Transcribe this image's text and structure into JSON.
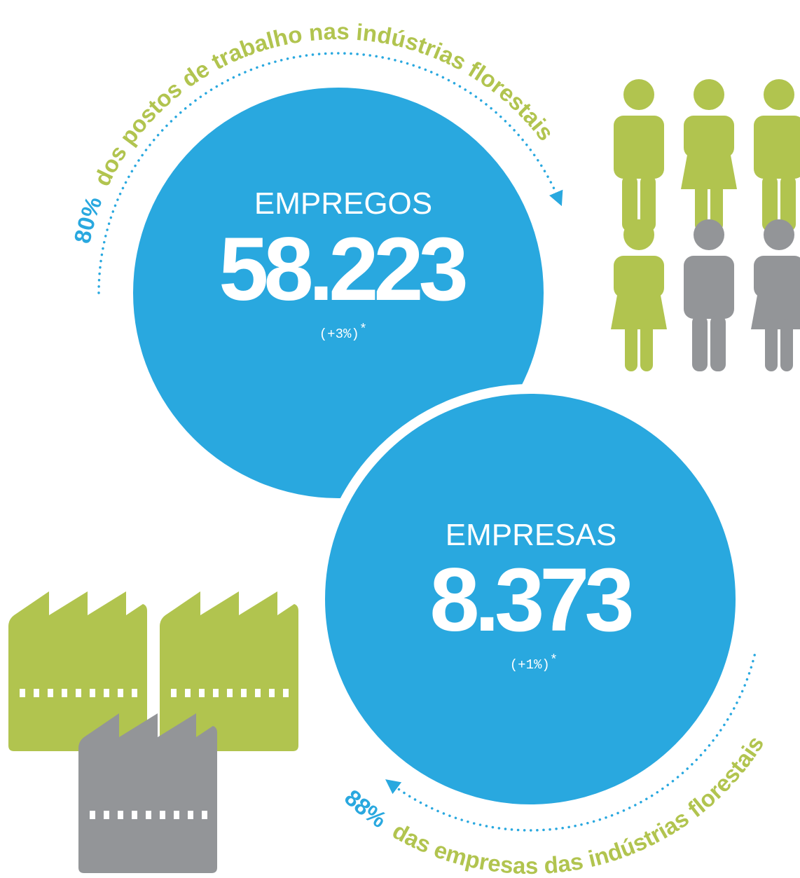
{
  "jobs": {
    "label": "EMPREGOS",
    "value": "58.223",
    "change": "(+3%)",
    "note": "*",
    "share": "80%",
    "share_text": "dos postos de trabalho nas indústrias florestais"
  },
  "companies": {
    "label": "EMPRESAS",
    "value": "8.373",
    "change": "(+1%)",
    "note": "*",
    "share": "88%",
    "share_text": "das empresas das indústrias florestais"
  }
}
